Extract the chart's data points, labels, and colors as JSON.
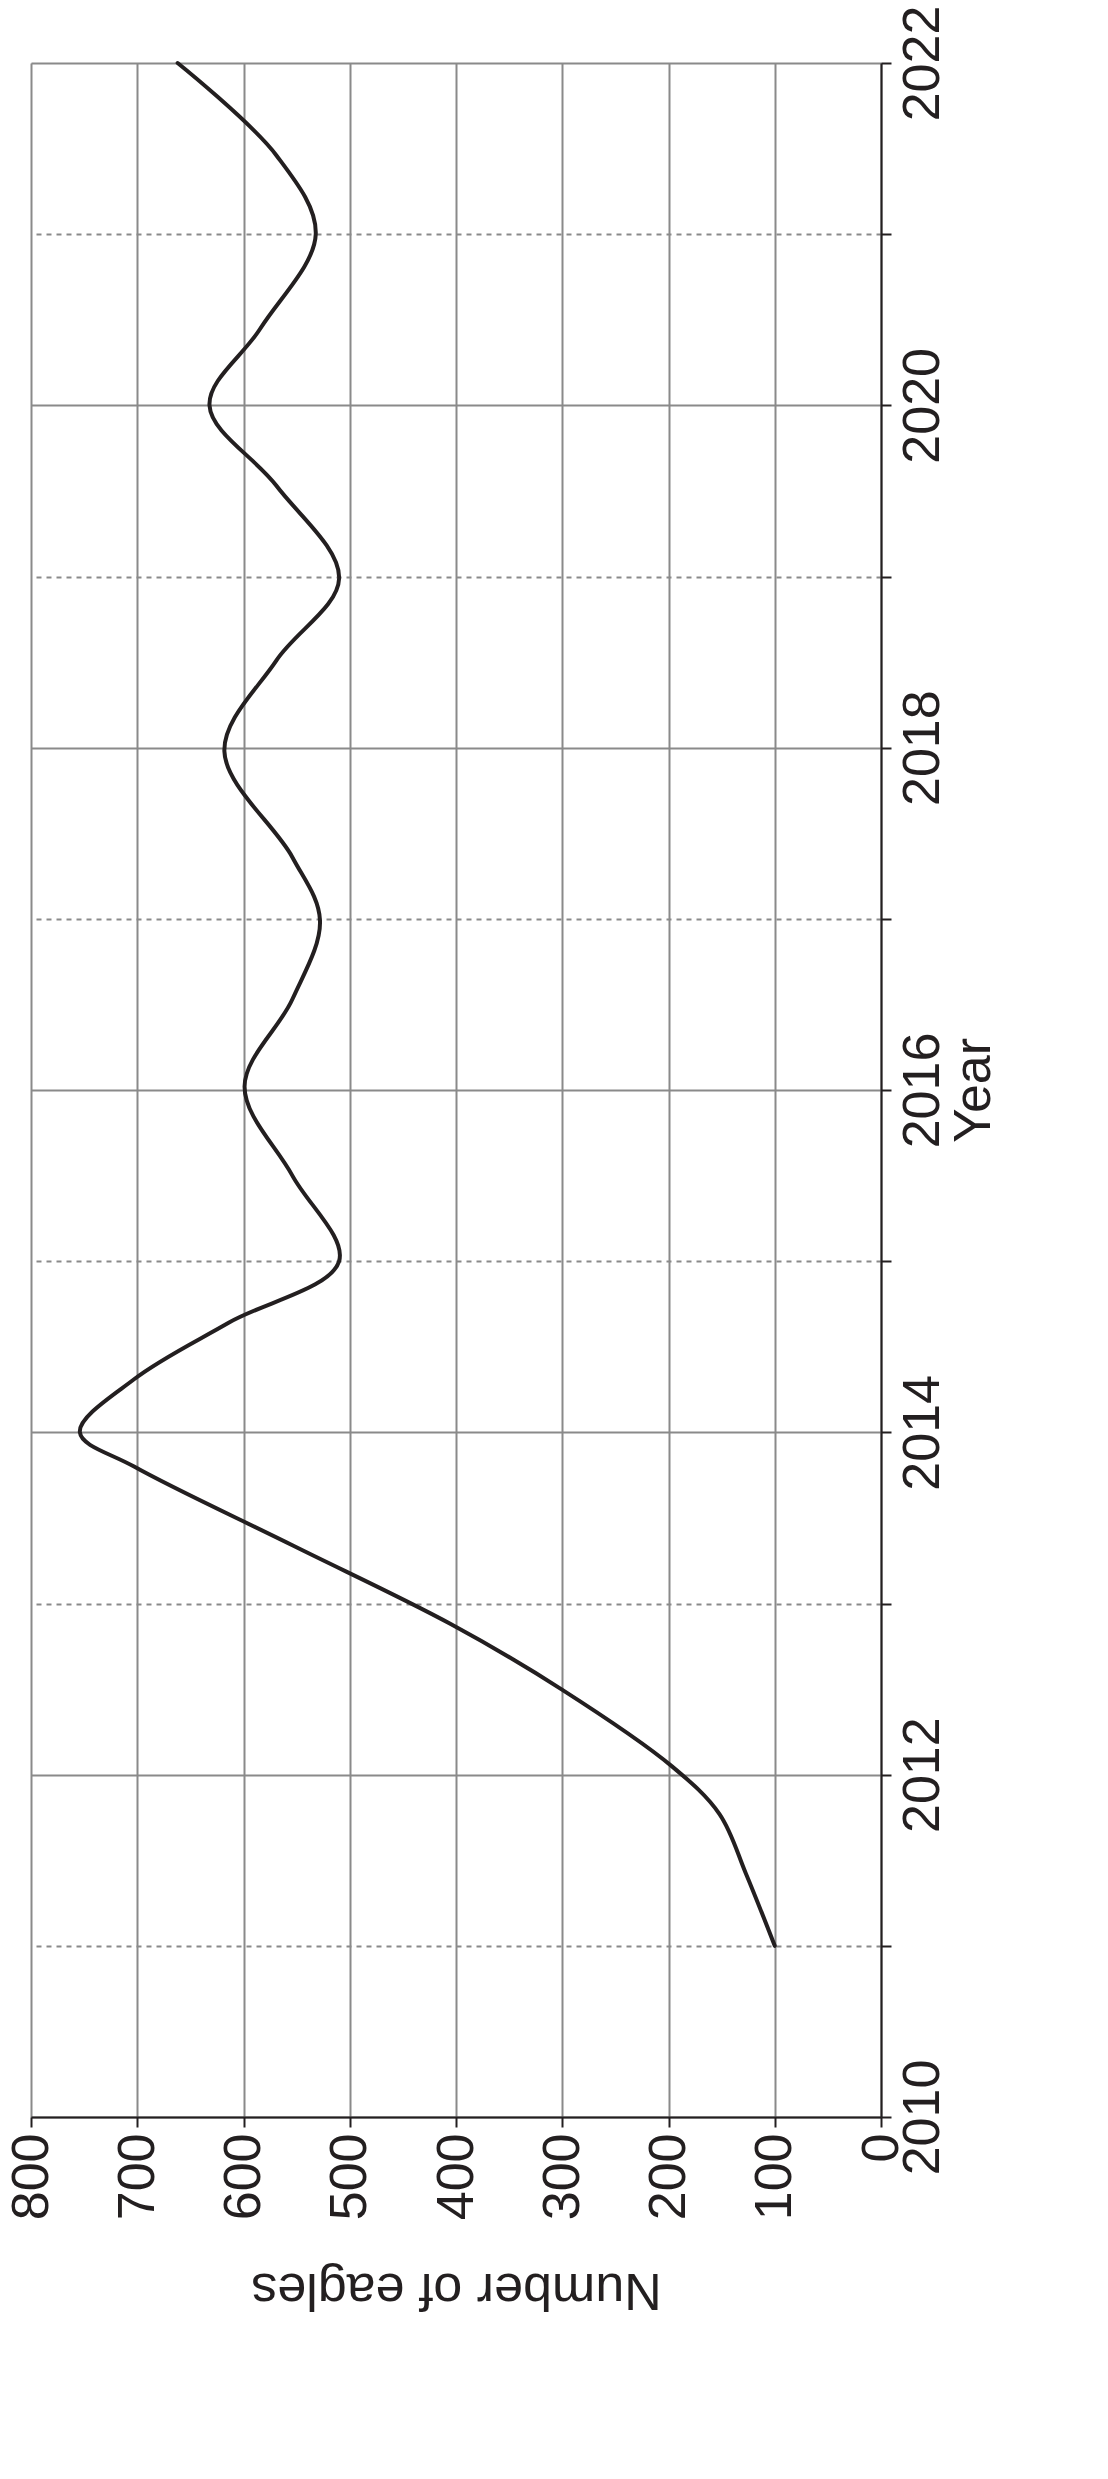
{
  "chart_data": {
    "type": "line",
    "xlabel": "Number of eagles",
    "ylabel": "Year",
    "series": [
      {
        "color": "#231f20",
        "x": [
          100,
          127,
          152,
          197,
          301,
          405,
          554,
          703,
          754,
          703,
          614,
          510,
          554,
          599,
          554,
          528,
          554,
          618,
          569,
          510,
          569,
          632,
          584,
          532,
          569,
          662
        ],
        "values": [
          2011,
          2011.42,
          2011.77,
          2012.05,
          2012.5,
          2012.88,
          2013.34,
          2013.8,
          2014,
          2014.31,
          2014.64,
          2015,
          2015.5,
          2016.02,
          2016.53,
          2016.99,
          2017.36,
          2017.98,
          2018.51,
          2018.99,
          2019.53,
          2020,
          2020.45,
          2021,
          2021.46,
          2022
        ]
      }
    ],
    "xlim": [
      800,
      0
    ],
    "ylim": [
      2010,
      2022
    ],
    "xticks": [
      800,
      700,
      600,
      500,
      400,
      300,
      200,
      100,
      0
    ],
    "yticks": [
      2010,
      {
        "value": 2011,
        "label": null
      },
      2012,
      {
        "value": 2013,
        "label": null
      },
      2014,
      {
        "value": 2015,
        "label": null
      },
      2016,
      {
        "value": 2017,
        "label": null
      },
      2018,
      {
        "value": 2019,
        "label": null
      },
      2020,
      {
        "value": 2021,
        "label": null
      },
      2022
    ],
    "grid": true,
    "line_style": "solid",
    "marker": "none"
  }
}
